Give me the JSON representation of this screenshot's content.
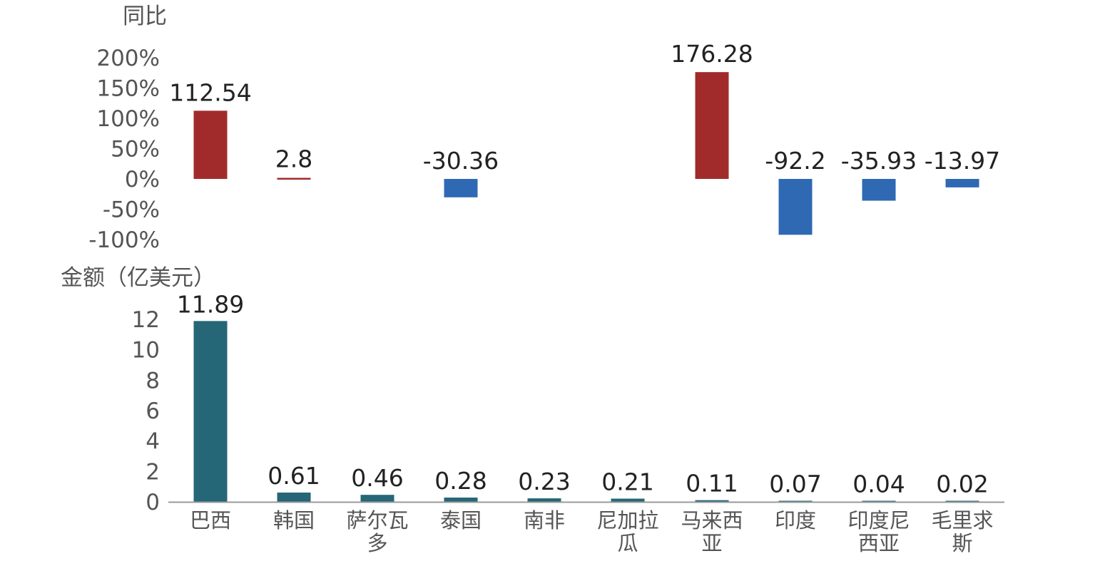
{
  "chart_data": [
    {
      "type": "bar",
      "ylabel": "同比",
      "categories": [
        "巴西",
        "韩国",
        "萨尔瓦多",
        "泰国",
        "南非",
        "尼加拉瓜",
        "马来西亚",
        "印度",
        "印度尼西亚",
        "毛里求斯"
      ],
      "values": [
        112.54,
        2.8,
        null,
        -30.36,
        null,
        null,
        176.28,
        -92.2,
        -35.93,
        -13.97
      ],
      "data_labels": [
        "112.54",
        "2.8",
        "",
        "-30.36",
        "",
        "",
        "176.28",
        "-92.2",
        "-35.93",
        "-13.97"
      ],
      "yticks": [
        "200%",
        "150%",
        "100%",
        "50%",
        "0%",
        "-50%",
        "-100%"
      ],
      "ytick_values": [
        200,
        150,
        100,
        50,
        0,
        -50,
        -100
      ],
      "ylim": [
        -100,
        200
      ],
      "colors": {
        "positive": "#a12b2b",
        "negative": "#2f69b3"
      },
      "grid": false,
      "legend": "none"
    },
    {
      "type": "bar",
      "ylabel": "金额（亿美元）",
      "categories": [
        "巴西",
        "韩国",
        "萨尔瓦多",
        "泰国",
        "南非",
        "尼加拉瓜",
        "马来西亚",
        "印度",
        "印度尼西亚",
        "毛里求斯"
      ],
      "category_lines": [
        [
          "巴西"
        ],
        [
          "韩国"
        ],
        [
          "萨尔瓦",
          "多"
        ],
        [
          "泰国"
        ],
        [
          "南非"
        ],
        [
          "尼加拉",
          "瓜"
        ],
        [
          "马来西",
          "亚"
        ],
        [
          "印度"
        ],
        [
          "印度尼",
          "西亚"
        ],
        [
          "毛里求",
          "斯"
        ]
      ],
      "values": [
        11.89,
        0.61,
        0.46,
        0.28,
        0.23,
        0.21,
        0.11,
        0.07,
        0.04,
        0.02
      ],
      "data_labels": [
        "11.89",
        "0.61",
        "0.46",
        "0.28",
        "0.23",
        "0.21",
        "0.11",
        "0.07",
        "0.04",
        "0.02"
      ],
      "yticks": [
        "12",
        "10",
        "8",
        "6",
        "4",
        "2",
        "0"
      ],
      "ytick_values": [
        12,
        10,
        8,
        6,
        4,
        2,
        0
      ],
      "ylim": [
        0,
        12
      ],
      "colors": {
        "bar": "#256677",
        "axis": "#999999"
      },
      "grid": false,
      "legend": "none"
    }
  ]
}
